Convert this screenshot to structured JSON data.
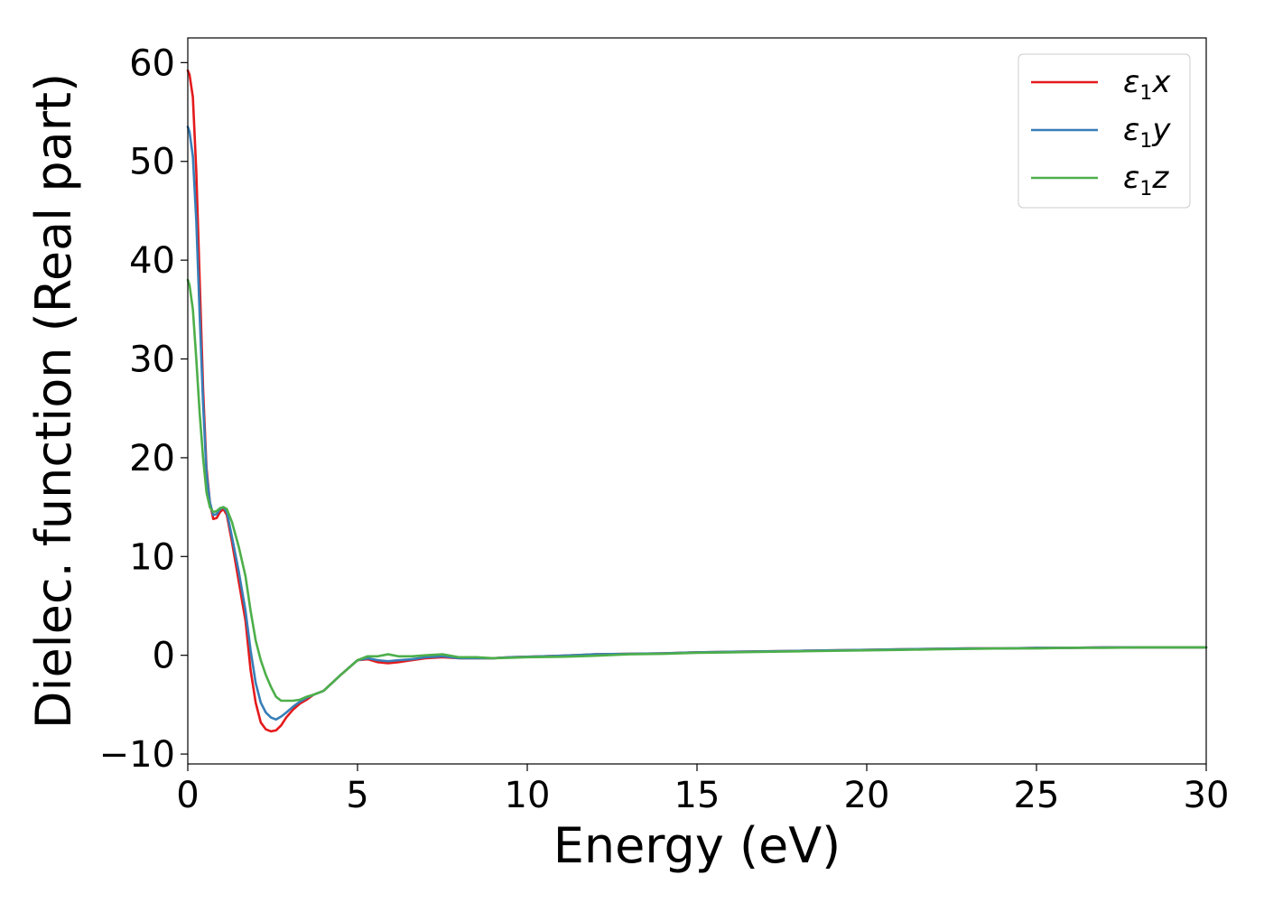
{
  "chart_data": {
    "type": "line",
    "title": "",
    "xlabel": "Energy (eV)",
    "ylabel": "Dielec. function (Real part)",
    "xlim": [
      0,
      30
    ],
    "ylim": [
      -11,
      62.5
    ],
    "xticks": [
      0,
      5,
      10,
      15,
      20,
      25,
      30
    ],
    "xtick_labels": [
      "0",
      "5",
      "10",
      "15",
      "20",
      "25",
      "30"
    ],
    "yticks": [
      -10,
      0,
      10,
      20,
      30,
      40,
      50,
      60
    ],
    "ytick_labels": [
      "−10",
      "0",
      "10",
      "20",
      "30",
      "40",
      "50",
      "60"
    ],
    "grid": false,
    "legend_position": "top-right",
    "series": [
      {
        "name": "ε1x",
        "symbol": "ε",
        "subscript": "1",
        "component": "x",
        "color": "#e41a1c",
        "x": [
          0,
          0.05,
          0.15,
          0.25,
          0.35,
          0.45,
          0.55,
          0.65,
          0.75,
          0.85,
          0.95,
          1.05,
          1.15,
          1.3,
          1.5,
          1.7,
          1.85,
          2.0,
          2.15,
          2.3,
          2.45,
          2.6,
          2.75,
          2.9,
          3.1,
          3.3,
          3.5,
          3.7,
          4.0,
          4.5,
          5.0,
          5.3,
          5.6,
          5.9,
          6.2,
          6.6,
          7.0,
          7.5,
          8.0,
          8.5,
          9.0,
          9.5,
          10,
          11,
          12,
          13,
          14,
          15,
          16,
          17,
          18,
          19,
          20,
          21,
          22,
          23,
          24,
          25,
          26,
          27,
          28,
          29,
          30
        ],
        "y": [
          59.2,
          58.8,
          56.5,
          49.0,
          38.0,
          27.0,
          19.0,
          15.5,
          13.8,
          13.9,
          14.5,
          14.8,
          14.2,
          11.5,
          7.5,
          3.5,
          -1.5,
          -4.8,
          -6.8,
          -7.5,
          -7.7,
          -7.6,
          -7.1,
          -6.3,
          -5.5,
          -4.9,
          -4.5,
          -4.0,
          -3.6,
          -2.0,
          -0.5,
          -0.4,
          -0.7,
          -0.8,
          -0.7,
          -0.5,
          -0.3,
          -0.2,
          -0.3,
          -0.3,
          -0.3,
          -0.2,
          -0.15,
          -0.05,
          0.1,
          0.15,
          0.2,
          0.3,
          0.35,
          0.4,
          0.45,
          0.5,
          0.55,
          0.6,
          0.65,
          0.7,
          0.7,
          0.75,
          0.75,
          0.8,
          0.8,
          0.8,
          0.8
        ]
      },
      {
        "name": "ε1y",
        "symbol": "ε",
        "subscript": "1",
        "component": "y",
        "color": "#377eb8",
        "x": [
          0,
          0.05,
          0.15,
          0.25,
          0.35,
          0.45,
          0.55,
          0.65,
          0.75,
          0.85,
          0.95,
          1.05,
          1.15,
          1.3,
          1.5,
          1.7,
          1.85,
          2.0,
          2.15,
          2.3,
          2.45,
          2.6,
          2.75,
          2.9,
          3.1,
          3.3,
          3.5,
          3.7,
          4.0,
          4.5,
          5.0,
          5.3,
          5.6,
          5.9,
          6.2,
          6.6,
          7.0,
          7.5,
          8.0,
          8.5,
          9.0,
          9.5,
          10,
          11,
          12,
          13,
          14,
          15,
          16,
          17,
          18,
          19,
          20,
          21,
          22,
          23,
          24,
          25,
          26,
          27,
          28,
          29,
          30
        ],
        "y": [
          53.5,
          53.0,
          50.5,
          44.0,
          34.5,
          25.5,
          18.5,
          15.5,
          14.2,
          14.3,
          14.8,
          15.0,
          14.5,
          12.0,
          8.5,
          4.5,
          0.5,
          -2.8,
          -4.8,
          -5.8,
          -6.3,
          -6.5,
          -6.2,
          -5.8,
          -5.2,
          -4.7,
          -4.3,
          -4.0,
          -3.6,
          -2.0,
          -0.5,
          -0.3,
          -0.5,
          -0.6,
          -0.5,
          -0.4,
          -0.2,
          -0.1,
          -0.3,
          -0.3,
          -0.3,
          -0.2,
          -0.15,
          -0.05,
          0.1,
          0.15,
          0.2,
          0.3,
          0.35,
          0.4,
          0.45,
          0.5,
          0.55,
          0.6,
          0.65,
          0.7,
          0.7,
          0.75,
          0.75,
          0.8,
          0.8,
          0.8,
          0.8
        ]
      },
      {
        "name": "ε1z",
        "symbol": "ε",
        "subscript": "1",
        "component": "z",
        "color": "#4daf4a",
        "x": [
          0,
          0.05,
          0.15,
          0.25,
          0.35,
          0.45,
          0.55,
          0.65,
          0.75,
          0.85,
          0.95,
          1.05,
          1.15,
          1.3,
          1.5,
          1.7,
          1.85,
          2.0,
          2.15,
          2.3,
          2.45,
          2.6,
          2.75,
          2.9,
          3.1,
          3.3,
          3.5,
          3.7,
          4.0,
          4.5,
          5.0,
          5.3,
          5.6,
          5.9,
          6.2,
          6.6,
          7.0,
          7.5,
          8.0,
          8.5,
          9.0,
          9.5,
          10,
          11,
          12,
          13,
          14,
          15,
          16,
          17,
          18,
          19,
          20,
          21,
          22,
          23,
          24,
          25,
          26,
          27,
          28,
          29,
          30
        ],
        "y": [
          38.0,
          37.5,
          35.0,
          30.0,
          24.5,
          20.0,
          16.5,
          15.0,
          14.5,
          14.6,
          14.9,
          15.0,
          14.8,
          13.5,
          11.0,
          8.0,
          4.5,
          1.5,
          -0.5,
          -2.0,
          -3.2,
          -4.2,
          -4.6,
          -4.6,
          -4.6,
          -4.5,
          -4.2,
          -4.0,
          -3.6,
          -2.0,
          -0.5,
          -0.1,
          -0.1,
          0.1,
          -0.1,
          -0.1,
          0.0,
          0.1,
          -0.2,
          -0.2,
          -0.3,
          -0.25,
          -0.2,
          -0.15,
          -0.05,
          0.1,
          0.15,
          0.25,
          0.3,
          0.35,
          0.4,
          0.45,
          0.5,
          0.55,
          0.6,
          0.65,
          0.7,
          0.7,
          0.75,
          0.75,
          0.8,
          0.8,
          0.8
        ]
      }
    ]
  }
}
